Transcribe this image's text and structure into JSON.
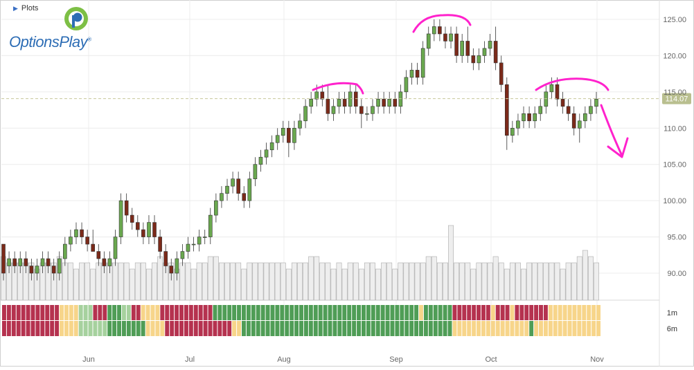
{
  "header": {
    "plots_label": "Plots"
  },
  "logo": {
    "text": "OptionsPlay",
    "reg": "®"
  },
  "chart_data": {
    "type": "candlestick",
    "x_axis": {
      "month_labels": [
        "Jun",
        "Jul",
        "Aug",
        "Sep",
        "Oct",
        "Nov"
      ]
    },
    "y_axis": {
      "ticks": [
        "125.00",
        "120.00",
        "115.00",
        "110.00",
        "105.00",
        "100.00",
        "95.00",
        "90.00"
      ],
      "range": [
        87,
        127
      ]
    },
    "last_price": {
      "label": "114.07",
      "value": 114.07
    },
    "signal_rows": [
      "1m",
      "6m"
    ],
    "ohlc": [
      [
        94,
        94,
        89,
        90
      ],
      [
        91,
        93,
        90,
        92
      ],
      [
        92,
        93,
        90,
        91
      ],
      [
        91,
        93,
        90,
        92
      ],
      [
        92,
        93,
        90,
        91
      ],
      [
        91,
        92,
        89,
        90
      ],
      [
        90,
        92,
        89,
        91
      ],
      [
        91,
        93,
        90,
        92
      ],
      [
        92,
        93,
        90,
        91
      ],
      [
        91,
        92,
        89,
        90
      ],
      [
        90,
        93,
        89,
        92
      ],
      [
        92,
        95,
        91,
        94
      ],
      [
        94,
        96,
        93,
        95
      ],
      [
        95,
        97,
        94,
        96
      ],
      [
        96,
        97,
        94,
        95
      ],
      [
        95,
        96,
        93,
        94
      ],
      [
        94,
        96,
        93,
        93
      ],
      [
        93,
        94,
        91,
        92
      ],
      [
        92,
        93,
        90,
        91
      ],
      [
        91,
        93,
        90,
        92
      ],
      [
        92,
        96,
        91,
        95
      ],
      [
        95,
        101,
        94,
        100
      ],
      [
        100,
        101,
        97,
        98
      ],
      [
        98,
        99,
        96,
        97
      ],
      [
        97,
        98,
        95,
        96
      ],
      [
        96,
        97,
        94,
        95
      ],
      [
        95,
        98,
        94,
        97
      ],
      [
        97,
        98,
        94,
        95
      ],
      [
        95,
        96,
        92,
        93
      ],
      [
        93,
        94,
        90,
        91
      ],
      [
        91,
        92,
        89,
        90
      ],
      [
        90,
        93,
        89,
        92
      ],
      [
        92,
        94,
        91,
        93
      ],
      [
        93,
        95,
        92,
        94
      ],
      [
        94,
        95,
        93,
        94
      ],
      [
        94,
        96,
        93,
        95
      ],
      [
        95,
        96,
        94,
        95
      ],
      [
        95,
        99,
        94,
        98
      ],
      [
        98,
        101,
        97,
        100
      ],
      [
        100,
        102,
        99,
        101
      ],
      [
        101,
        103,
        100,
        102
      ],
      [
        102,
        104,
        101,
        103
      ],
      [
        103,
        104,
        100,
        101
      ],
      [
        101,
        102,
        99,
        100
      ],
      [
        100,
        104,
        99,
        103
      ],
      [
        103,
        106,
        102,
        105
      ],
      [
        105,
        107,
        104,
        106
      ],
      [
        106,
        108,
        105,
        107
      ],
      [
        107,
        109,
        106,
        108
      ],
      [
        108,
        110,
        107,
        109
      ],
      [
        109,
        111,
        108,
        110
      ],
      [
        110,
        111,
        106,
        108
      ],
      [
        108,
        111,
        107,
        110
      ],
      [
        110,
        112,
        109,
        111
      ],
      [
        111,
        114,
        110,
        113
      ],
      [
        113,
        115,
        112,
        114
      ],
      [
        114,
        116,
        113,
        115
      ],
      [
        115,
        116,
        113,
        114
      ],
      [
        114,
        116,
        111,
        112
      ],
      [
        112,
        114,
        111,
        113
      ],
      [
        113,
        115,
        112,
        114
      ],
      [
        114,
        115,
        112,
        113
      ],
      [
        113,
        116,
        112,
        115
      ],
      [
        115,
        116,
        112,
        113
      ],
      [
        113,
        114,
        110,
        112
      ],
      [
        112,
        113,
        111,
        112
      ],
      [
        112,
        114,
        111,
        113
      ],
      [
        113,
        115,
        112,
        114
      ],
      [
        114,
        115,
        112,
        113
      ],
      [
        113,
        115,
        112,
        114
      ],
      [
        114,
        115,
        112,
        113
      ],
      [
        113,
        116,
        112,
        115
      ],
      [
        115,
        118,
        114,
        117
      ],
      [
        117,
        119,
        116,
        118
      ],
      [
        118,
        119,
        116,
        117
      ],
      [
        117,
        122,
        116,
        121
      ],
      [
        121,
        124,
        120,
        123
      ],
      [
        123,
        125,
        122,
        124
      ],
      [
        124,
        125,
        122,
        123
      ],
      [
        123,
        124,
        121,
        122
      ],
      [
        122,
        124,
        121,
        123
      ],
      [
        123,
        124,
        119,
        120
      ],
      [
        120,
        123,
        119,
        122
      ],
      [
        122,
        124,
        119,
        120
      ],
      [
        120,
        121,
        118,
        119
      ],
      [
        119,
        121,
        118,
        120
      ],
      [
        120,
        122,
        119,
        121
      ],
      [
        121,
        123,
        120,
        122
      ],
      [
        122,
        124,
        118,
        119
      ],
      [
        119,
        120,
        115,
        116
      ],
      [
        116,
        117,
        107,
        109
      ],
      [
        109,
        111,
        108,
        110
      ],
      [
        110,
        112,
        109,
        111
      ],
      [
        111,
        113,
        110,
        112
      ],
      [
        112,
        113,
        110,
        111
      ],
      [
        111,
        113,
        110,
        112
      ],
      [
        112,
        114,
        111,
        113
      ],
      [
        113,
        116,
        112,
        115
      ],
      [
        115,
        117,
        114,
        116
      ],
      [
        116,
        117,
        113,
        114
      ],
      [
        114,
        115,
        112,
        113
      ],
      [
        113,
        114,
        111,
        112
      ],
      [
        112,
        113,
        109,
        110
      ],
      [
        110,
        112,
        108,
        111
      ],
      [
        111,
        113,
        110,
        112
      ],
      [
        112,
        114,
        111,
        113
      ],
      [
        113,
        115,
        112,
        114
      ]
    ],
    "volume": [
      7,
      6,
      6,
      6,
      6,
      6,
      5,
      6,
      6,
      6,
      7,
      6,
      6,
      5,
      6,
      6,
      5,
      6,
      6,
      6,
      6,
      6,
      6,
      5,
      6,
      6,
      5,
      6,
      7,
      6,
      6,
      5,
      6,
      6,
      5,
      6,
      6,
      7,
      7,
      6,
      6,
      6,
      6,
      5,
      6,
      6,
      6,
      6,
      6,
      6,
      6,
      5,
      6,
      6,
      6,
      7,
      7,
      6,
      6,
      5,
      6,
      5,
      6,
      6,
      5,
      6,
      6,
      5,
      6,
      6,
      5,
      6,
      6,
      6,
      6,
      6,
      7,
      7,
      6,
      6,
      12,
      6,
      6,
      6,
      5,
      6,
      6,
      6,
      7,
      6,
      5,
      6,
      6,
      5,
      6,
      6,
      6,
      6,
      6,
      6,
      5,
      6,
      6,
      7,
      8,
      7,
      6
    ],
    "signals": {
      "row1": [
        "r",
        "r",
        "r",
        "r",
        "r",
        "r",
        "r",
        "r",
        "r",
        "r",
        "r",
        "r",
        "y",
        "y",
        "y",
        "y",
        "l",
        "l",
        "l",
        "r",
        "r",
        "r",
        "g",
        "g",
        "g",
        "l",
        "l",
        "r",
        "r",
        "y",
        "y",
        "y",
        "y",
        "r",
        "r",
        "r",
        "r",
        "r",
        "r",
        "r",
        "r",
        "r",
        "r",
        "r",
        "g",
        "g",
        "g",
        "g",
        "g",
        "g",
        "g",
        "g",
        "g",
        "g",
        "g",
        "g",
        "g",
        "g",
        "g",
        "g",
        "g",
        "g",
        "g",
        "g",
        "g",
        "g",
        "g",
        "g",
        "g",
        "g",
        "g",
        "g",
        "g",
        "g",
        "g",
        "g",
        "g",
        "g",
        "g",
        "g",
        "g",
        "g",
        "g",
        "g",
        "g",
        "g",
        "g",
        "y",
        "g",
        "g",
        "g",
        "g",
        "g",
        "g",
        "r",
        "r",
        "r",
        "r",
        "r",
        "r",
        "r",
        "r",
        "y",
        "r",
        "r",
        "r",
        "y",
        "r",
        "r",
        "r",
        "r",
        "r",
        "r",
        "r",
        "y",
        "y",
        "y",
        "y",
        "y",
        "y",
        "y",
        "y",
        "y",
        "y",
        "y"
      ],
      "row2": [
        "r",
        "r",
        "r",
        "r",
        "r",
        "r",
        "r",
        "r",
        "r",
        "r",
        "r",
        "r",
        "y",
        "y",
        "y",
        "y",
        "l",
        "l",
        "l",
        "l",
        "l",
        "l",
        "g",
        "g",
        "g",
        "g",
        "g",
        "g",
        "g",
        "g",
        "y",
        "y",
        "y",
        "y",
        "r",
        "r",
        "r",
        "r",
        "r",
        "r",
        "r",
        "r",
        "r",
        "r",
        "r",
        "r",
        "r",
        "r",
        "y",
        "y",
        "g",
        "g",
        "g",
        "g",
        "g",
        "g",
        "g",
        "g",
        "g",
        "g",
        "g",
        "g",
        "g",
        "g",
        "g",
        "g",
        "g",
        "g",
        "g",
        "g",
        "g",
        "g",
        "g",
        "g",
        "g",
        "g",
        "g",
        "g",
        "g",
        "g",
        "g",
        "g",
        "g",
        "g",
        "g",
        "g",
        "g",
        "g",
        "g",
        "g",
        "g",
        "g",
        "g",
        "g",
        "y",
        "y",
        "y",
        "y",
        "y",
        "y",
        "y",
        "y",
        "y",
        "y",
        "y",
        "y",
        "y",
        "y",
        "y",
        "y",
        "g",
        "y",
        "y",
        "y",
        "y",
        "y",
        "y",
        "y",
        "y",
        "y",
        "y",
        "y",
        "y",
        "y",
        "y"
      ]
    },
    "colors": {
      "up": "#6aa84f",
      "down": "#7b2a1a",
      "volume": "#eeeeee",
      "signal_red": "#b5324f",
      "signal_green": "#4f9d56",
      "signal_yellow": "#f7d58a",
      "signal_light": "#a6d19e",
      "annotation": "#ff22cc",
      "price_line": "#c8c89a"
    }
  }
}
